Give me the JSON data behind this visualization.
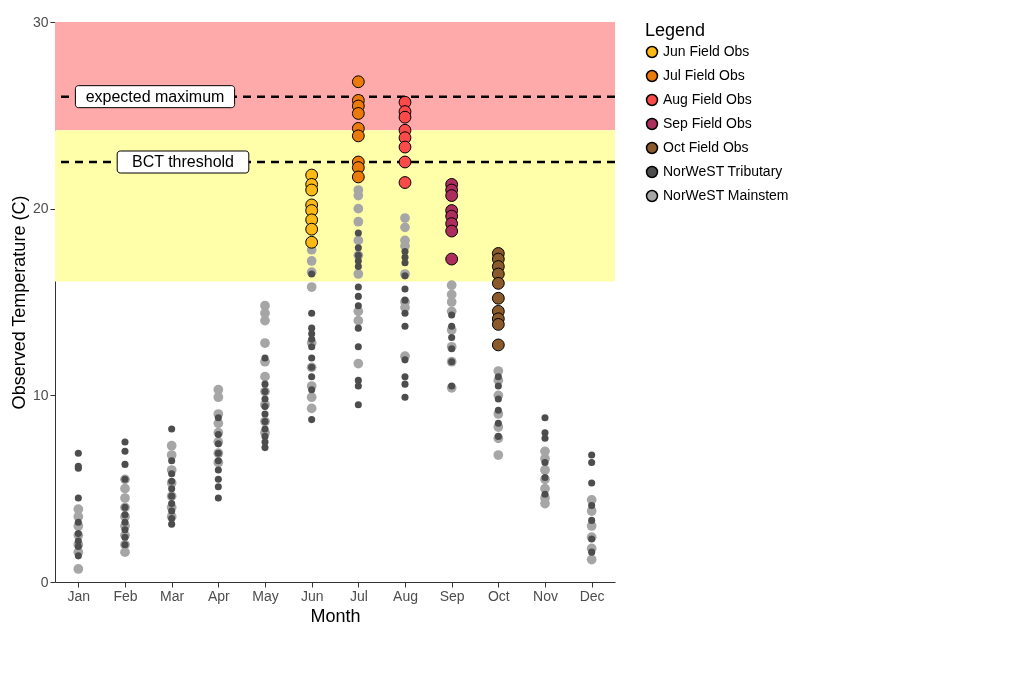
{
  "chart_data": {
    "type": "scatter",
    "xlabel": "Month",
    "ylabel": "Observed Temperature (C)",
    "legend_title": "Legend",
    "legend": "right",
    "grid": false,
    "marker": "circle",
    "categories": [
      "Jan",
      "Feb",
      "Mar",
      "Apr",
      "May",
      "Jun",
      "Jul",
      "Aug",
      "Sep",
      "Oct",
      "Nov",
      "Dec"
    ],
    "ylim": [
      0,
      30
    ],
    "yticks": [
      0,
      10,
      20,
      30
    ],
    "bands": [
      {
        "axis": "y",
        "from": 24.2,
        "to": 30,
        "color": "#ffaaaa"
      },
      {
        "axis": "y",
        "from": 16.1,
        "to": 24.2,
        "color": "#ffffaa"
      }
    ],
    "ref_lines": [
      {
        "axis": "y",
        "value": 26,
        "label": "expected maximum",
        "line_style": "dashed",
        "color": "#000000"
      },
      {
        "axis": "y",
        "value": 22.5,
        "label": "BCT threshold",
        "line_style": "dashed",
        "color": "#000000"
      }
    ],
    "series": [
      {
        "name": "NorWeST Mainstem",
        "color": "#a6a6a6",
        "x": [
          "Jan",
          "Jan",
          "Jan",
          "Jan",
          "Jan",
          "Jan",
          "Jan",
          "Feb",
          "Feb",
          "Feb",
          "Feb",
          "Feb",
          "Feb",
          "Feb",
          "Feb",
          "Feb",
          "Mar",
          "Mar",
          "Mar",
          "Mar",
          "Mar",
          "Mar",
          "Mar",
          "Apr",
          "Apr",
          "Apr",
          "Apr",
          "Apr",
          "Apr",
          "Apr",
          "Apr",
          "May",
          "May",
          "May",
          "May",
          "May",
          "May",
          "May",
          "May",
          "May",
          "May",
          "Jun",
          "Jun",
          "Jun",
          "Jun",
          "Jun",
          "Jun",
          "Jun",
          "Jun",
          "Jun",
          "Jul",
          "Jul",
          "Jul",
          "Jul",
          "Jul",
          "Jul",
          "Jul",
          "Jul",
          "Jul",
          "Jul",
          "Aug",
          "Aug",
          "Aug",
          "Aug",
          "Aug",
          "Aug",
          "Aug",
          "Aug",
          "Sep",
          "Sep",
          "Sep",
          "Sep",
          "Sep",
          "Sep",
          "Sep",
          "Sep",
          "Oct",
          "Oct",
          "Oct",
          "Oct",
          "Oct",
          "Oct",
          "Oct",
          "Nov",
          "Nov",
          "Nov",
          "Nov",
          "Nov",
          "Nov",
          "Nov",
          "Dec",
          "Dec",
          "Dec",
          "Dec",
          "Dec",
          "Dec"
        ],
        "values": [
          3.9,
          3.5,
          3.0,
          2.5,
          2.0,
          1.6,
          0.7,
          5.5,
          5.0,
          4.5,
          4.0,
          3.5,
          3.0,
          2.5,
          2.0,
          1.6,
          7.3,
          6.8,
          6.0,
          5.3,
          4.6,
          4.0,
          3.5,
          10.3,
          9.9,
          9.0,
          8.5,
          8.0,
          7.5,
          6.9,
          6.4,
          14.8,
          14.4,
          14.0,
          12.8,
          11.8,
          11.0,
          10.2,
          9.5,
          8.6,
          8.0,
          17.8,
          17.2,
          16.6,
          15.8,
          12.8,
          11.5,
          10.5,
          9.9,
          9.3,
          21.0,
          20.7,
          20.0,
          19.3,
          18.3,
          17.5,
          16.5,
          14.5,
          14.0,
          11.7,
          19.5,
          19.0,
          18.3,
          18.0,
          16.5,
          15.0,
          14.7,
          12.1,
          15.9,
          15.4,
          15.0,
          14.5,
          13.5,
          12.6,
          11.8,
          10.4,
          11.3,
          10.8,
          10.0,
          9.0,
          8.3,
          7.7,
          6.8,
          7.0,
          6.6,
          6.0,
          5.5,
          5.0,
          4.5,
          4.2,
          4.4,
          3.8,
          3.0,
          2.4,
          1.8,
          1.2
        ]
      },
      {
        "name": "NorWeST Tributary",
        "color": "#4d4d4d",
        "x": [
          "Jan",
          "Jan",
          "Jan",
          "Jan",
          "Jan",
          "Jan",
          "Jan",
          "Jan",
          "Jan",
          "Feb",
          "Feb",
          "Feb",
          "Feb",
          "Feb",
          "Feb",
          "Feb",
          "Feb",
          "Feb",
          "Feb",
          "Mar",
          "Mar",
          "Mar",
          "Mar",
          "Mar",
          "Mar",
          "Mar",
          "Mar",
          "Mar",
          "Mar",
          "Apr",
          "Apr",
          "Apr",
          "Apr",
          "Apr",
          "Apr",
          "Apr",
          "Apr",
          "Apr",
          "May",
          "May",
          "May",
          "May",
          "May",
          "May",
          "May",
          "May",
          "May",
          "May",
          "May",
          "Jun",
          "Jun",
          "Jun",
          "Jun",
          "Jun",
          "Jun",
          "Jun",
          "Jun",
          "Jun",
          "Jun",
          "Jun",
          "Jul",
          "Jul",
          "Jul",
          "Jul",
          "Jul",
          "Jul",
          "Jul",
          "Jul",
          "Jul",
          "Jul",
          "Jul",
          "Jul",
          "Jul",
          "Aug",
          "Aug",
          "Aug",
          "Aug",
          "Aug",
          "Aug",
          "Aug",
          "Aug",
          "Aug",
          "Aug",
          "Aug",
          "Aug",
          "Sep",
          "Sep",
          "Sep",
          "Sep",
          "Sep",
          "Sep",
          "Oct",
          "Oct",
          "Oct",
          "Oct",
          "Oct",
          "Oct",
          "Nov",
          "Nov",
          "Nov",
          "Nov",
          "Nov",
          "Nov",
          "Dec",
          "Dec",
          "Dec",
          "Dec",
          "Dec",
          "Dec",
          "Dec"
        ],
        "values": [
          6.9,
          6.2,
          6.1,
          4.5,
          3.2,
          2.6,
          2.2,
          1.9,
          1.4,
          7.5,
          7.0,
          6.3,
          5.5,
          4.0,
          3.6,
          3.2,
          2.8,
          2.4,
          2.0,
          8.2,
          6.5,
          5.8,
          5.4,
          5.0,
          4.6,
          4.2,
          3.8,
          3.4,
          3.1,
          8.8,
          7.9,
          7.4,
          6.9,
          6.5,
          6.0,
          5.5,
          5.1,
          4.5,
          12.0,
          10.6,
          10.2,
          9.8,
          9.4,
          9.0,
          8.6,
          8.2,
          7.8,
          7.5,
          7.2,
          16.5,
          14.4,
          13.6,
          13.3,
          13.0,
          12.6,
          12.0,
          11.5,
          11.0,
          10.3,
          8.7,
          18.7,
          17.9,
          17.5,
          17.2,
          16.9,
          15.8,
          15.3,
          14.8,
          13.6,
          12.6,
          10.8,
          10.5,
          9.5,
          17.7,
          17.4,
          17.1,
          16.4,
          15.7,
          15.1,
          14.4,
          13.7,
          11.9,
          11.0,
          10.6,
          9.9,
          14.3,
          13.7,
          13.1,
          12.5,
          11.8,
          10.5,
          11.0,
          10.5,
          9.8,
          9.2,
          8.5,
          7.8,
          8.8,
          8.0,
          7.7,
          6.4,
          5.6,
          4.7,
          6.8,
          6.4,
          5.3,
          4.1,
          3.3,
          2.3,
          1.6
        ]
      },
      {
        "name": "Jun Field Obs",
        "color": "#ffb915",
        "x": [
          "Jun",
          "Jun",
          "Jun",
          "Jun",
          "Jun",
          "Jun",
          "Jun",
          "Jun"
        ],
        "values": [
          21.8,
          21.3,
          21.0,
          20.2,
          19.9,
          19.4,
          18.9,
          18.2
        ]
      },
      {
        "name": "Jul Field Obs",
        "color": "#ec7a08",
        "x": [
          "Jul",
          "Jul",
          "Jul",
          "Jul",
          "Jul",
          "Jul",
          "Jul",
          "Jul",
          "Jul"
        ],
        "values": [
          26.8,
          25.8,
          25.5,
          25.1,
          24.3,
          23.9,
          22.5,
          22.2,
          21.7
        ]
      },
      {
        "name": "Aug Field Obs",
        "color": "#fb4a4a",
        "x": [
          "Aug",
          "Aug",
          "Aug",
          "Aug",
          "Aug",
          "Aug",
          "Aug",
          "Aug"
        ],
        "values": [
          25.7,
          25.2,
          24.9,
          24.2,
          23.8,
          23.3,
          22.5,
          21.4
        ]
      },
      {
        "name": "Sep Field Obs",
        "color": "#ad2e5c",
        "x": [
          "Sep",
          "Sep",
          "Sep",
          "Sep",
          "Sep",
          "Sep",
          "Sep",
          "Sep"
        ],
        "values": [
          21.3,
          21.0,
          20.7,
          19.9,
          19.6,
          19.2,
          18.8,
          17.3
        ]
      },
      {
        "name": "Oct Field Obs",
        "color": "#8b5a2b",
        "x": [
          "Oct",
          "Oct",
          "Oct",
          "Oct",
          "Oct",
          "Oct",
          "Oct",
          "Oct",
          "Oct",
          "Oct"
        ],
        "values": [
          17.6,
          17.3,
          16.9,
          16.5,
          16.0,
          15.2,
          14.5,
          14.1,
          13.8,
          12.7
        ]
      }
    ]
  }
}
